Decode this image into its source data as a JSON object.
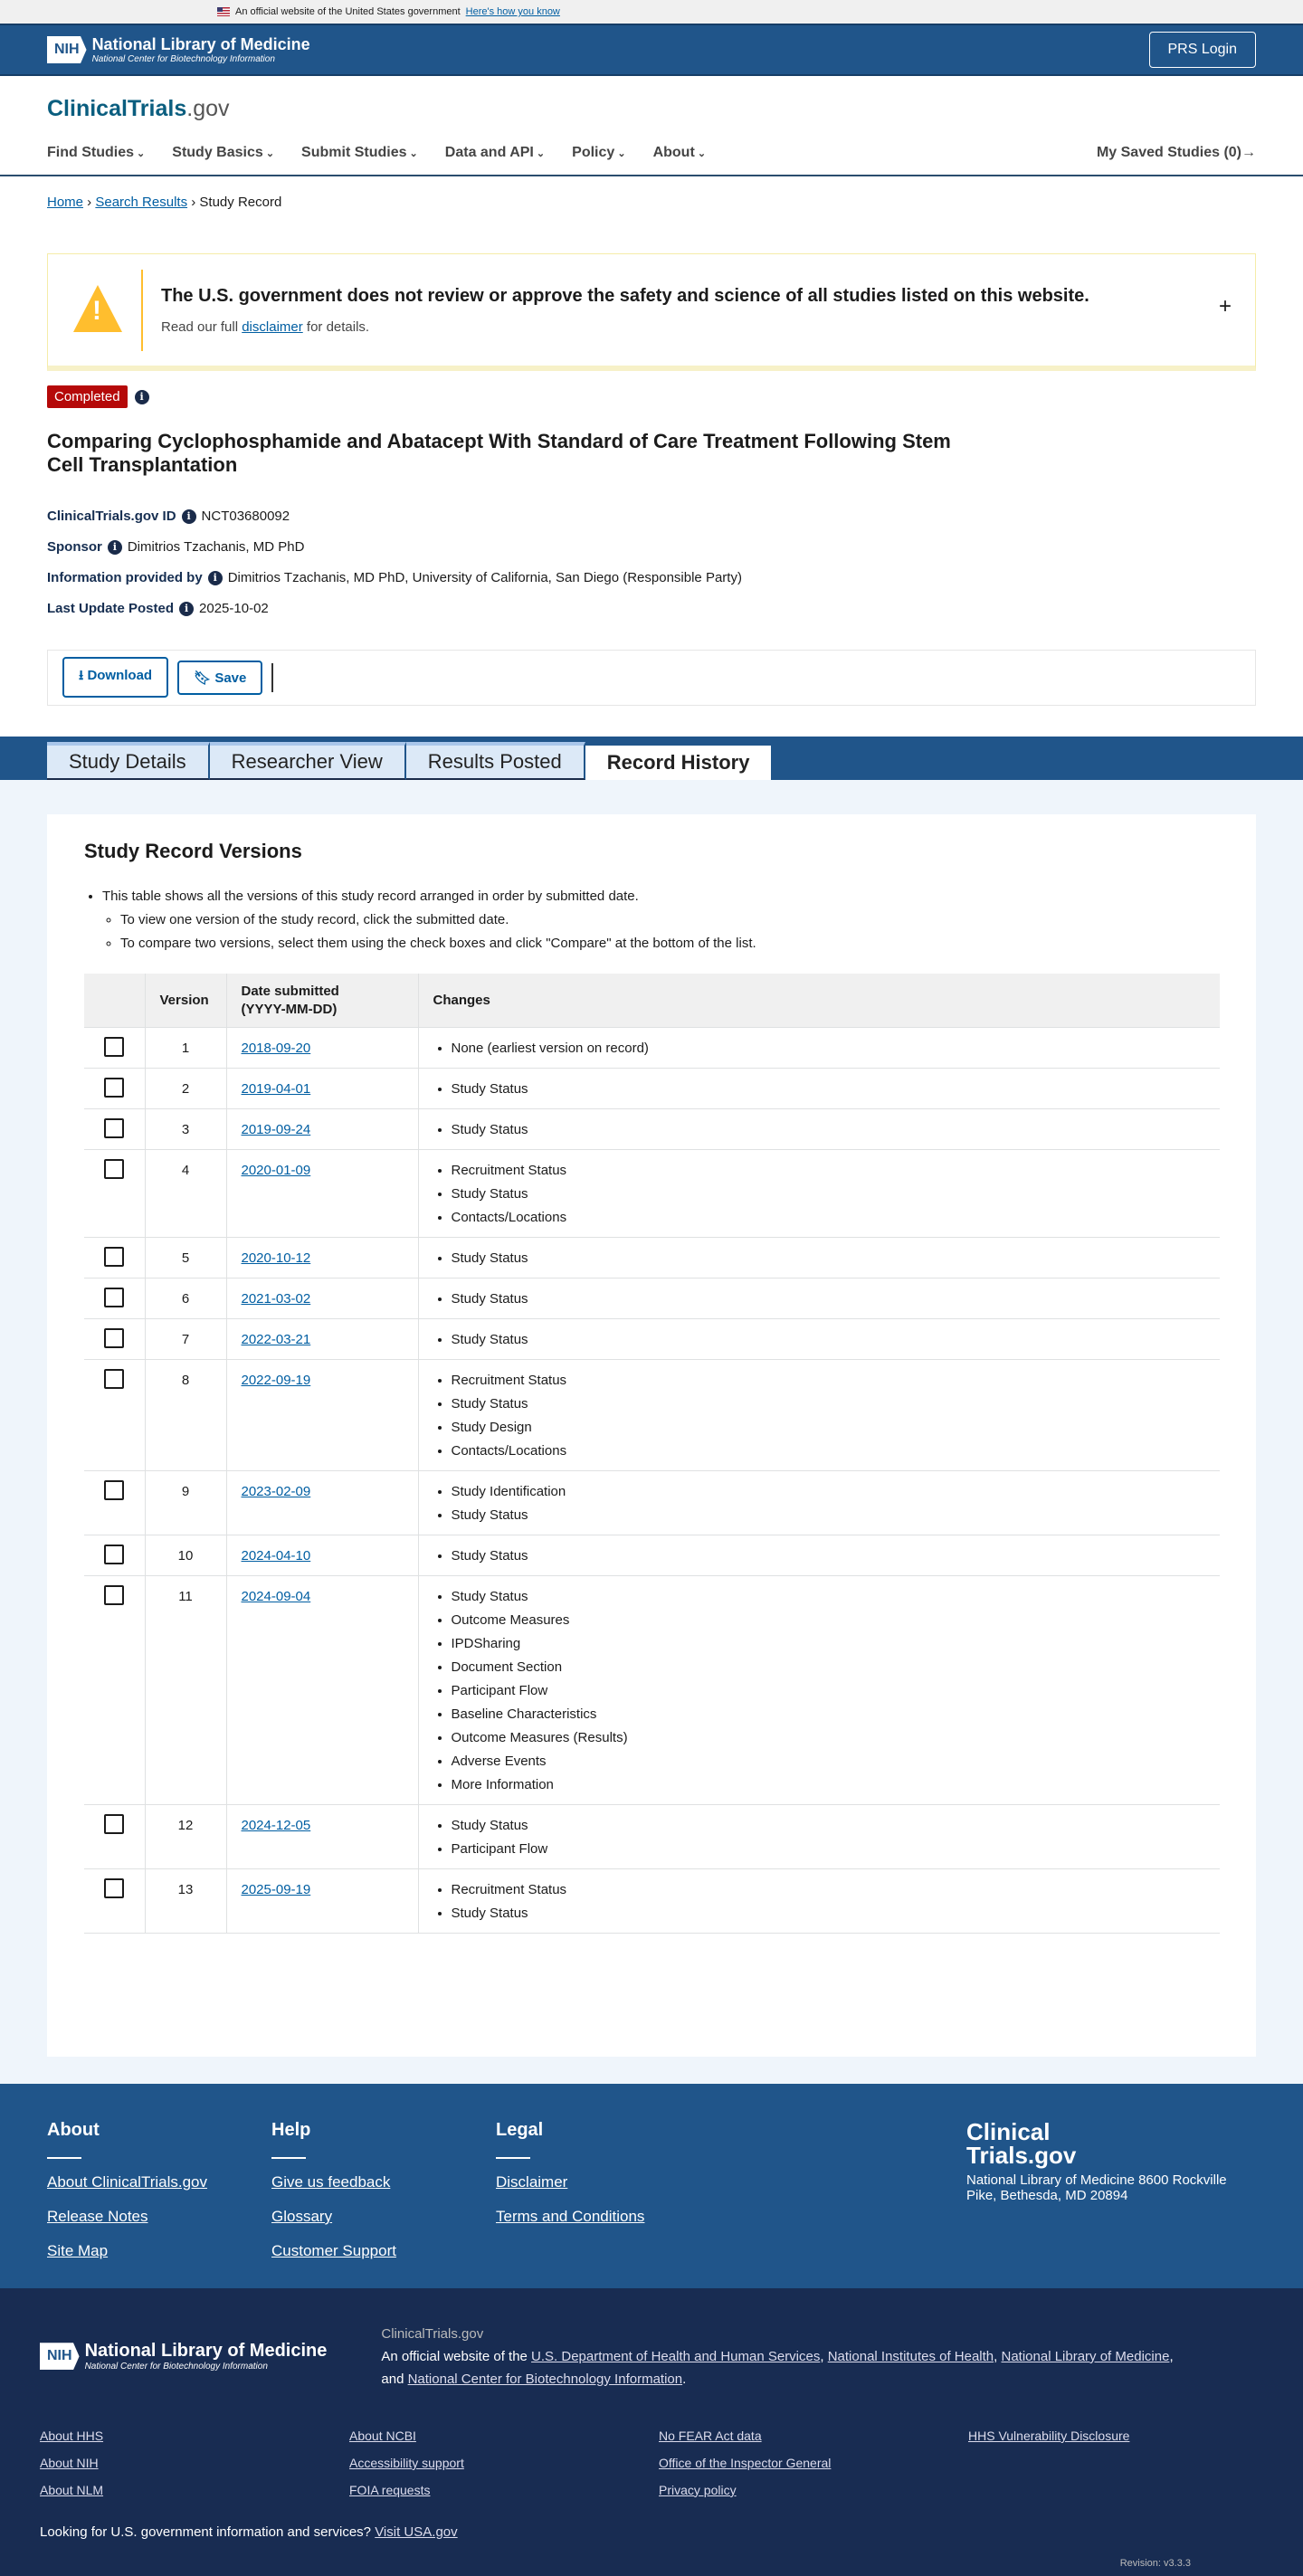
{
  "gov_banner": {
    "text": "An official website of the United States government",
    "link": "Here's how you know"
  },
  "header": {
    "nih": "NIH",
    "nlm_title": "National Library of Medicine",
    "nlm_sub": "National Center for Biotechnology Information",
    "login": "PRS Login"
  },
  "brand": {
    "main": "ClinicalTrials",
    "suffix": ".gov"
  },
  "nav": {
    "items": [
      "Find Studies",
      "Study Basics",
      "Submit Studies",
      "Data and API",
      "Policy",
      "About"
    ],
    "saved": "My Saved Studies (0)→"
  },
  "breadcrumb": [
    "Home",
    "Search Results",
    "Study Record"
  ],
  "disclaimer": {
    "title": "The U.S. government does not review or approve the safety and science of all studies listed on this website.",
    "pre": "Read our full ",
    "link": "disclaimer",
    "post": " for details."
  },
  "status": "Completed",
  "title": "Comparing Cyclophosphamide and Abatacept With Standard of Care Treatment Following Stem Cell Transplantation",
  "meta": [
    {
      "label": "ClinicalTrials.gov ID",
      "value": "NCT03680092"
    },
    {
      "label": "Sponsor",
      "value": "Dimitrios Tzachanis, MD PhD"
    },
    {
      "label": "Information provided by",
      "value": "Dimitrios Tzachanis, MD PhD, University of California, San Diego (Responsible Party)"
    },
    {
      "label": "Last Update Posted",
      "value": "2025-10-02"
    }
  ],
  "actions": {
    "download": "Download",
    "save": "Save"
  },
  "tabs": [
    "Study Details",
    "Researcher View",
    "Results Posted",
    "Record History"
  ],
  "versions": {
    "heading": "Study Record Versions",
    "intro": "This table shows all the versions of this study record arranged in order by submitted date.",
    "sub": [
      "To view one version of the study record, click the submitted date.",
      "To compare two versions, select them using the check boxes and click \"Compare\" at the bottom of the list."
    ],
    "columns": [
      "",
      "Version",
      "Date submitted\n(YYYY-MM-DD)",
      "Changes"
    ],
    "rows": [
      {
        "version": "1",
        "date": "2018-09-20",
        "changes": [
          "None (earliest version on record)"
        ]
      },
      {
        "version": "2",
        "date": "2019-04-01",
        "changes": [
          "Study Status"
        ]
      },
      {
        "version": "3",
        "date": "2019-09-24",
        "changes": [
          "Study Status"
        ]
      },
      {
        "version": "4",
        "date": "2020-01-09",
        "changes": [
          "Recruitment Status",
          "Study Status",
          "Contacts/Locations"
        ]
      },
      {
        "version": "5",
        "date": "2020-10-12",
        "changes": [
          "Study Status"
        ]
      },
      {
        "version": "6",
        "date": "2021-03-02",
        "changes": [
          "Study Status"
        ]
      },
      {
        "version": "7",
        "date": "2022-03-21",
        "changes": [
          "Study Status"
        ]
      },
      {
        "version": "8",
        "date": "2022-09-19",
        "changes": [
          "Recruitment Status",
          "Study Status",
          "Study Design",
          "Contacts/Locations"
        ]
      },
      {
        "version": "9",
        "date": "2023-02-09",
        "changes": [
          "Study Identification",
          "Study Status"
        ]
      },
      {
        "version": "10",
        "date": "2024-04-10",
        "changes": [
          "Study Status"
        ]
      },
      {
        "version": "11",
        "date": "2024-09-04",
        "changes": [
          "Study Status",
          "Outcome Measures",
          "IPDSharing",
          "Document Section",
          "Participant Flow",
          "Baseline Characteristics",
          "Outcome Measures (Results)",
          "Adverse Events",
          "More Information"
        ]
      },
      {
        "version": "12",
        "date": "2024-12-05",
        "changes": [
          "Study Status",
          "Participant Flow"
        ]
      },
      {
        "version": "13",
        "date": "2025-09-19",
        "changes": [
          "Recruitment Status",
          "Study Status"
        ]
      }
    ]
  },
  "footer": {
    "cols": [
      {
        "title": "About",
        "links": [
          "About ClinicalTrials.gov",
          "Release Notes",
          "Site Map"
        ]
      },
      {
        "title": "Help",
        "links": [
          "Give us feedback",
          "Glossary",
          "Customer Support"
        ]
      },
      {
        "title": "Legal",
        "links": [
          "Disclaimer",
          "Terms and Conditions"
        ]
      }
    ],
    "brand": "Clinical Trials.gov",
    "address": "National Library of Medicine 8600 Rockville Pike, Bethesda, MD 20894",
    "site": "ClinicalTrials.gov",
    "official_pre": "An official website of the ",
    "official_links": [
      "U.S. Department of Health and Human Services",
      "National Institutes of Health",
      "National Library of Medicine",
      "National Center for Biotechnology Information"
    ],
    "links": [
      "About HHS",
      "About NCBI",
      "No FEAR Act data",
      "HHS Vulnerability Disclosure",
      "About NIH",
      "Accessibility support",
      "Office of the Inspector General",
      "",
      "About NLM",
      "FOIA requests",
      "Privacy policy",
      ""
    ],
    "usa_text": "Looking for U.S. government information and services?",
    "usa_link": "Visit USA.gov",
    "revision": "Revision: v3.3.3"
  }
}
